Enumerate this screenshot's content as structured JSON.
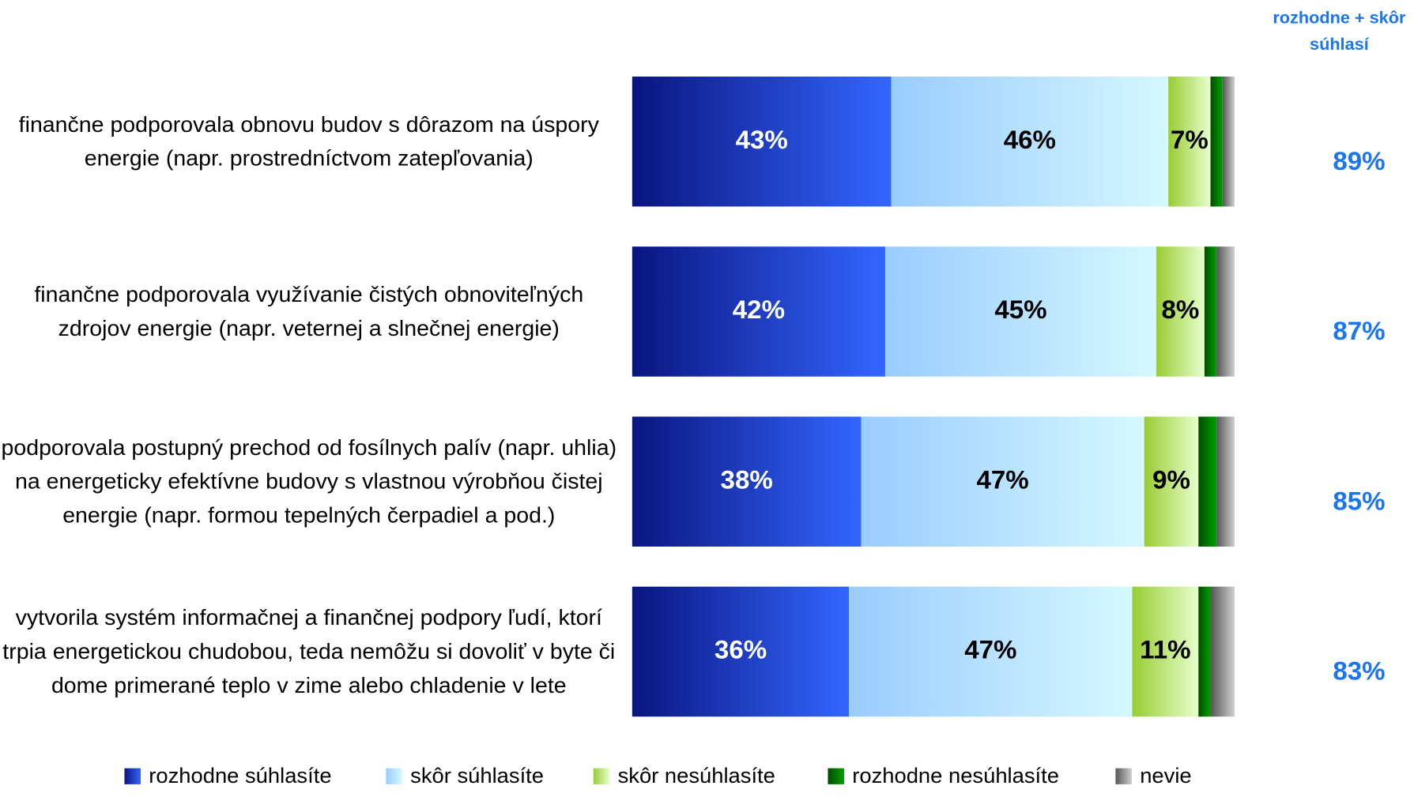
{
  "chart_data": {
    "type": "stacked_bar_horizontal",
    "categories": [
      "finančne podporovala obnovu budov s dôrazom na úspory energie (napr. prostredníctvom zatepľovania)",
      "finančne podporovala využívanie čistých obnoviteľných zdrojov energie (napr. veternej a slnečnej energie)",
      "podporovala postupný prechod od fosílnych palív (napr. uhlia) na energeticky efektívne budovy s vlastnou výrobňou čistej energie (napr. formou tepelných čerpadiel a pod.)",
      "vytvorila systém informačnej a finančnej podpory ľudí, ktorí trpia energetickou chudobou, teda nemôžu si dovoliť v byte či dome primerané teplo v zime alebo chladenie v lete"
    ],
    "xlim": [
      0,
      100
    ],
    "series": [
      {
        "name": "rozhodne súhlasíte",
        "color": "#0a1580",
        "color2": "#3366ff",
        "label_color": "#ffffff",
        "values": [
          43,
          42,
          38,
          36
        ],
        "value_labels": [
          "43%",
          "42%",
          "38%",
          "36%"
        ]
      },
      {
        "name": "skôr súhlasíte",
        "color": "#99ccff",
        "color2": "#d5f8ff",
        "label_color": "#000000",
        "values": [
          46,
          45,
          47,
          47
        ],
        "value_labels": [
          "46%",
          "45%",
          "47%",
          "47%"
        ]
      },
      {
        "name": "skôr nesúhlasíte",
        "color": "#99cc33",
        "color2": "#e6ffcc",
        "label_color": "#000000",
        "values": [
          7,
          8,
          9,
          11
        ],
        "value_labels": [
          "7%",
          "8%",
          "9%",
          "11%"
        ]
      },
      {
        "name": "rozhodne nesúhlasíte",
        "color": "#004d00",
        "color2": "#00a000",
        "values": [
          2,
          2,
          3,
          2
        ]
      },
      {
        "name": "nevie",
        "color": "#555555",
        "color2": "#d0d0d0",
        "values": [
          2,
          3,
          3,
          4
        ]
      }
    ],
    "totals": {
      "title": "rozhodne + skôr súhlasí",
      "color": "#1a75f0",
      "values": [
        89,
        87,
        85,
        83
      ],
      "value_labels": [
        "89%",
        "87%",
        "85%",
        "83%"
      ]
    }
  }
}
